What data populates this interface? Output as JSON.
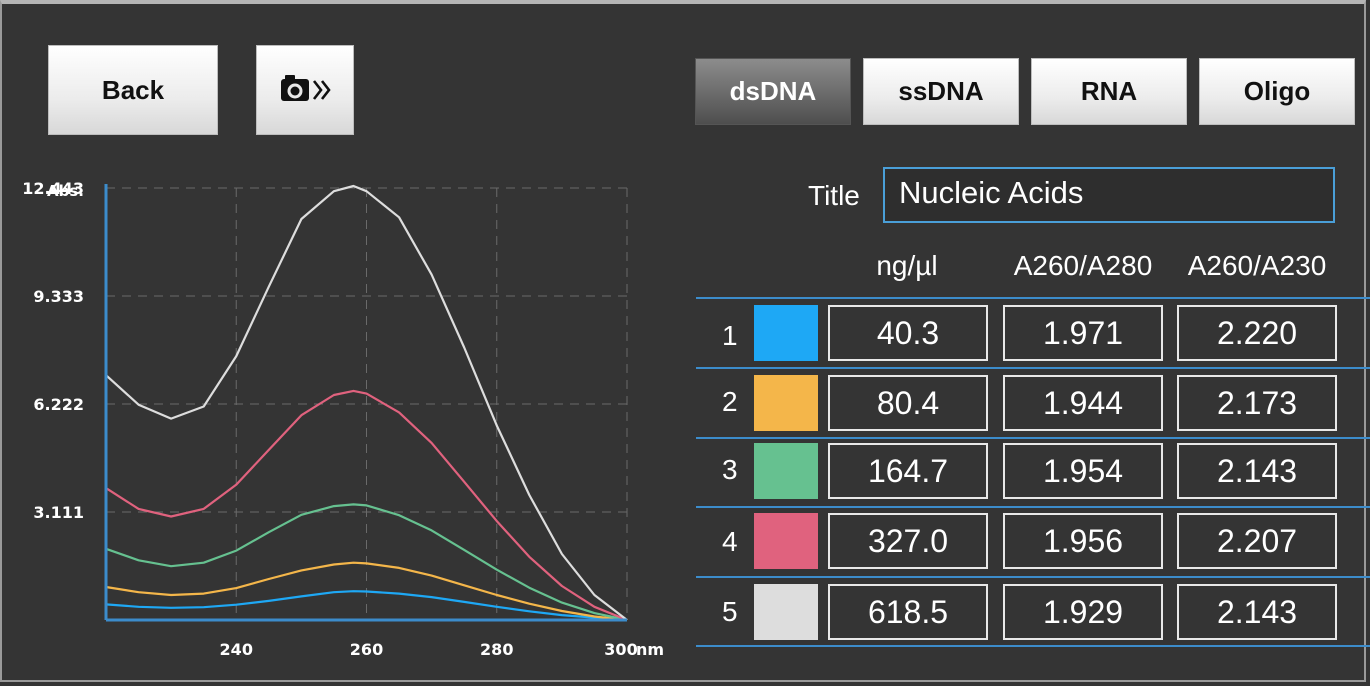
{
  "toolbar": {
    "back_label": "Back",
    "camera_icon": "camera-icon",
    "forward_icon": "double-chevron-right-icon"
  },
  "tabs": [
    {
      "label": "dsDNA",
      "active": true
    },
    {
      "label": "ssDNA",
      "active": false
    },
    {
      "label": "RNA",
      "active": false
    },
    {
      "label": "Oligo",
      "active": false
    }
  ],
  "title_field": {
    "label": "Title",
    "value": "Nucleic Acids"
  },
  "table": {
    "headers": [
      "ng/µl",
      "A260/A280",
      "A260/A230"
    ],
    "rows": [
      {
        "index": "1",
        "color": "#1ea8f5",
        "conc": "40.3",
        "a260_280": "1.971",
        "a260_230": "2.220"
      },
      {
        "index": "2",
        "color": "#f4b64a",
        "conc": "80.4",
        "a260_280": "1.944",
        "a260_230": "2.173"
      },
      {
        "index": "3",
        "color": "#66c190",
        "conc": "164.7",
        "a260_280": "1.954",
        "a260_230": "2.143"
      },
      {
        "index": "4",
        "color": "#e0627e",
        "conc": "327.0",
        "a260_280": "1.956",
        "a260_230": "2.207"
      },
      {
        "index": "5",
        "color": "#dddddd",
        "conc": "618.5",
        "a260_280": "1.929",
        "a260_230": "2.143"
      }
    ]
  },
  "chart_data": {
    "type": "line",
    "ylabel": "Abs.",
    "y_ticks": [
      "12.443",
      "9.333",
      "6.222",
      "3.111"
    ],
    "x_ticks": [
      "240",
      "260",
      "280",
      "300"
    ],
    "x_unit": "nm",
    "xlim": [
      220,
      300
    ],
    "ylim": [
      0,
      12.443
    ],
    "grid": true,
    "x": [
      220,
      225,
      230,
      235,
      240,
      245,
      250,
      255,
      258,
      260,
      265,
      270,
      275,
      280,
      285,
      290,
      295,
      300
    ],
    "series": [
      {
        "color": "#1ea8f5",
        "values": [
          0.45,
          0.38,
          0.35,
          0.37,
          0.44,
          0.55,
          0.68,
          0.8,
          0.83,
          0.82,
          0.76,
          0.66,
          0.52,
          0.38,
          0.25,
          0.14,
          0.07,
          0
        ]
      },
      {
        "color": "#f4b64a",
        "values": [
          0.95,
          0.8,
          0.72,
          0.76,
          0.92,
          1.18,
          1.43,
          1.6,
          1.65,
          1.63,
          1.5,
          1.28,
          1.0,
          0.72,
          0.47,
          0.26,
          0.1,
          0
        ]
      },
      {
        "color": "#66c190",
        "values": [
          2.05,
          1.72,
          1.55,
          1.65,
          2.0,
          2.53,
          3.03,
          3.28,
          3.33,
          3.3,
          3.02,
          2.58,
          2.02,
          1.45,
          0.93,
          0.5,
          0.2,
          0
        ]
      },
      {
        "color": "#e0627e",
        "values": [
          3.8,
          3.2,
          2.98,
          3.2,
          3.9,
          4.9,
          5.9,
          6.48,
          6.6,
          6.52,
          5.98,
          5.1,
          3.98,
          2.85,
          1.82,
          0.98,
          0.38,
          0
        ]
      },
      {
        "color": "#dddddd",
        "values": [
          7.05,
          6.2,
          5.8,
          6.15,
          7.6,
          9.6,
          11.55,
          12.35,
          12.5,
          12.35,
          11.6,
          9.95,
          7.85,
          5.6,
          3.6,
          1.9,
          0.72,
          0
        ]
      }
    ]
  }
}
